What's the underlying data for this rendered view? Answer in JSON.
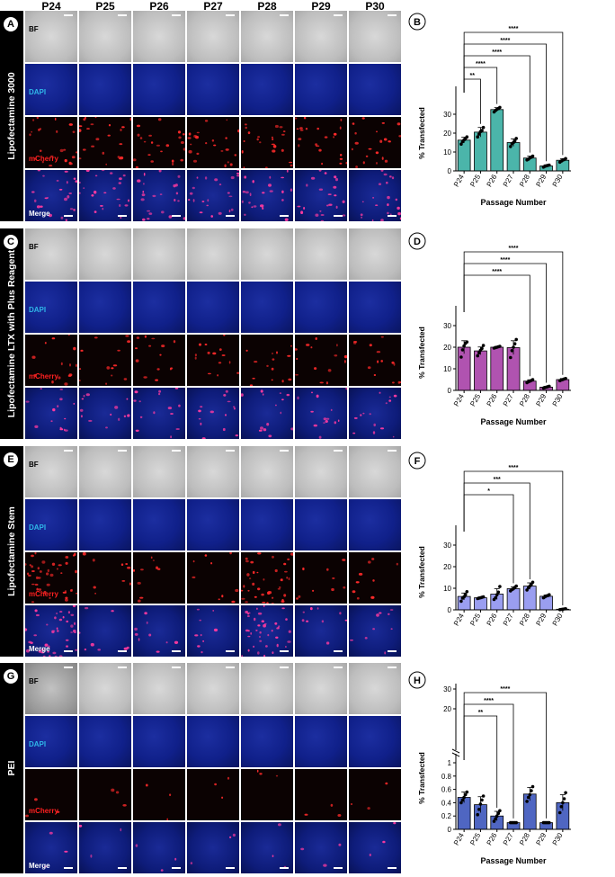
{
  "columns": [
    "P24",
    "P25",
    "P26",
    "P27",
    "P28",
    "P29",
    "P30"
  ],
  "rows": {
    "bf": "BF",
    "dapi": "DAPI",
    "mcherry": "mCherry",
    "merge": "Merge"
  },
  "panels": [
    {
      "letter": "A",
      "title": "Lipofectamine 3000"
    },
    {
      "letter": "C",
      "title": "Lipofectamine LTX with Plus Reagent"
    },
    {
      "letter": "E",
      "title": "Lipofectamine Stem"
    },
    {
      "letter": "G",
      "title": "PEI"
    }
  ],
  "chart_letters": [
    "B",
    "D",
    "F",
    "H"
  ],
  "colors": {
    "teal": "#4bb5aa",
    "magenta": "#b053b0",
    "lavender": "#9a9ef0",
    "blue": "#4f66c2",
    "mcherry_label": "#ff2020",
    "dapi_label": "#2fb6e8"
  },
  "chart_data": [
    {
      "type": "bar",
      "categories": [
        "P24",
        "P25",
        "P26",
        "P27",
        "P28",
        "P29",
        "P30"
      ],
      "values": [
        16.3,
        20.5,
        32.5,
        15.0,
        6.8,
        2.6,
        5.6
      ],
      "errors": [
        1.5,
        2.5,
        1.0,
        2.0,
        1.0,
        0.6,
        0.9
      ],
      "points": [
        [
          14.2,
          15.5,
          16.4,
          17.2,
          18.0
        ],
        [
          18.0,
          19.5,
          20.8,
          21.4,
          23.0
        ],
        [
          31.2,
          32.0,
          32.6,
          33.0,
          33.6
        ],
        [
          12.9,
          14.4,
          15.0,
          15.8,
          17.2
        ],
        [
          5.8,
          6.2,
          6.9,
          7.3,
          7.8
        ],
        [
          2.0,
          2.4,
          2.7,
          2.9,
          3.1
        ],
        [
          4.6,
          5.2,
          5.7,
          6.0,
          6.5
        ]
      ],
      "ylim": [
        0,
        40
      ],
      "yticks": [
        0,
        10,
        20,
        30
      ],
      "ylabel": "% Transfected",
      "xlabel": "Passage Number",
      "color": "#4bb5aa",
      "significance": [
        {
          "from": "P24",
          "to": "P25",
          "label": "**"
        },
        {
          "from": "P24",
          "to": "P26",
          "label": "****"
        },
        {
          "from": "P24",
          "to": "P28",
          "label": "****"
        },
        {
          "from": "P24",
          "to": "P29",
          "label": "****"
        },
        {
          "from": "P24",
          "to": "P30",
          "label": "****"
        }
      ]
    },
    {
      "type": "bar",
      "categories": [
        "P24",
        "P25",
        "P26",
        "P27",
        "P28",
        "P29",
        "P30"
      ],
      "values": [
        20.0,
        18.3,
        20.0,
        19.8,
        4.3,
        1.5,
        5.0
      ],
      "errors": [
        3.0,
        1.8,
        0.4,
        3.2,
        0.6,
        0.4,
        0.5
      ],
      "points": [
        [
          15.4,
          18.8,
          20.6,
          21.8,
          22.4
        ],
        [
          16.0,
          17.4,
          18.6,
          19.4,
          20.8
        ],
        [
          19.6,
          19.8,
          20.0,
          20.2,
          20.4
        ],
        [
          15.2,
          18.4,
          20.0,
          21.6,
          23.6
        ],
        [
          3.6,
          4.0,
          4.3,
          4.6,
          5.0
        ],
        [
          1.1,
          1.3,
          1.5,
          1.7,
          1.9
        ],
        [
          4.5,
          4.8,
          5.0,
          5.3,
          5.5
        ]
      ],
      "ylim": [
        0,
        35
      ],
      "yticks": [
        0,
        10,
        20,
        30
      ],
      "ylabel": "% Transfected",
      "xlabel": "Passage Number",
      "color": "#b053b0",
      "significance": [
        {
          "from": "P24",
          "to": "P28",
          "label": "****"
        },
        {
          "from": "P24",
          "to": "P29",
          "label": "****"
        },
        {
          "from": "P24",
          "to": "P30",
          "label": "****"
        }
      ]
    },
    {
      "type": "bar",
      "categories": [
        "P24",
        "P25",
        "P26",
        "P27",
        "P28",
        "P29",
        "P30"
      ],
      "values": [
        6.2,
        5.6,
        7.3,
        9.8,
        11.0,
        6.3,
        0.3
      ],
      "errors": [
        1.6,
        0.4,
        2.5,
        0.9,
        1.5,
        0.6,
        0.1
      ],
      "points": [
        [
          4.0,
          5.4,
          6.0,
          7.0,
          8.4
        ],
        [
          5.2,
          5.4,
          5.6,
          5.8,
          6.0
        ],
        [
          4.8,
          5.6,
          7.0,
          8.2,
          10.8
        ],
        [
          8.8,
          9.4,
          9.8,
          10.4,
          11.0
        ],
        [
          9.2,
          10.2,
          11.0,
          11.8,
          12.8
        ],
        [
          5.6,
          6.0,
          6.4,
          6.6,
          7.0
        ],
        [
          0.1,
          0.2,
          0.3,
          0.4,
          0.5
        ]
      ],
      "ylim": [
        0,
        35
      ],
      "yticks": [
        0,
        10,
        20,
        30
      ],
      "ylabel": "% Transfected",
      "xlabel": "",
      "color": "#9a9ef0",
      "significance": [
        {
          "from": "P24",
          "to": "P27",
          "label": "*"
        },
        {
          "from": "P24",
          "to": "P28",
          "label": "***"
        },
        {
          "from": "P24",
          "to": "P30",
          "label": "****"
        }
      ]
    },
    {
      "type": "bar",
      "categories": [
        "P24",
        "P25",
        "P26",
        "P27",
        "P28",
        "P29",
        "P30"
      ],
      "values": [
        0.48,
        0.37,
        0.2,
        0.1,
        0.53,
        0.1,
        0.4
      ],
      "errors": [
        0.08,
        0.12,
        0.07,
        0.01,
        0.1,
        0.01,
        0.12
      ],
      "points": [
        [
          0.4,
          0.44,
          0.48,
          0.52,
          0.56
        ],
        [
          0.22,
          0.3,
          0.38,
          0.44,
          0.5
        ],
        [
          0.12,
          0.16,
          0.2,
          0.24,
          0.28
        ],
        [
          0.1,
          0.1,
          0.1,
          0.1,
          0.1
        ],
        [
          0.42,
          0.48,
          0.52,
          0.58,
          0.64
        ],
        [
          0.1,
          0.1,
          0.1,
          0.1,
          0.1
        ],
        [
          0.25,
          0.34,
          0.4,
          0.46,
          0.55
        ]
      ],
      "ylim": [
        0,
        1.0
      ],
      "yticks": [
        0.0,
        0.2,
        0.4,
        0.6,
        0.8,
        1.0
      ],
      "yticks_upper": [
        20,
        30
      ],
      "ylabel": "% Transfected",
      "xlabel": "Passage Number",
      "color": "#4f66c2",
      "significance": [
        {
          "from": "P24",
          "to": "P26",
          "label": "**"
        },
        {
          "from": "P24",
          "to": "P27",
          "label": "****"
        },
        {
          "from": "P24",
          "to": "P29",
          "label": "****"
        }
      ]
    }
  ]
}
